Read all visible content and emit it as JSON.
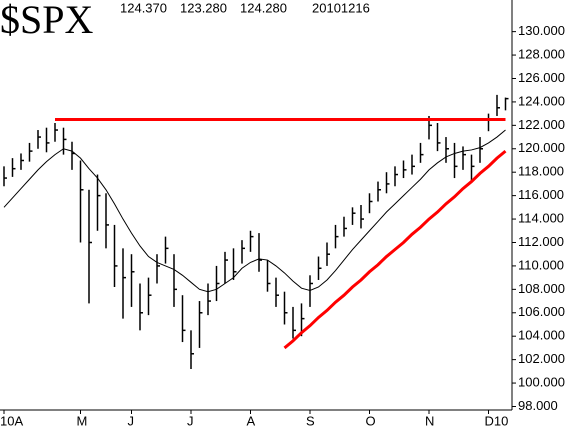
{
  "chart_data": {
    "type": "ohlc",
    "title": "$SPX",
    "info": [
      "124.370",
      "123.280",
      "124.280",
      "20101216"
    ],
    "categories": [
      "10A",
      null,
      null,
      null,
      null,
      null,
      null,
      null,
      null,
      "M",
      null,
      null,
      null,
      null,
      null,
      "J",
      null,
      null,
      null,
      null,
      null,
      null,
      "J",
      null,
      null,
      null,
      null,
      null,
      null,
      "A",
      null,
      null,
      null,
      null,
      null,
      null,
      "S",
      null,
      null,
      null,
      null,
      null,
      null,
      "O",
      null,
      null,
      null,
      null,
      null,
      null,
      "N",
      null,
      null,
      null,
      null,
      null,
      null,
      "D10",
      null,
      null
    ],
    "color": "#000000",
    "high": [
      118.5,
      119.2,
      119.6,
      120.5,
      121.6,
      121.8,
      122.2,
      121.8,
      120.6,
      119.0,
      116.5,
      117.8,
      116.2,
      113.5,
      111.5,
      111.0,
      108.5,
      109.0,
      111.0,
      112.5,
      111.0,
      107.5,
      104.5,
      107.0,
      108.5,
      110.0,
      111.2,
      111.5,
      112.2,
      113.0,
      112.8,
      110.5,
      109.0,
      107.8,
      106.5,
      106.8,
      109.2,
      110.8,
      112.0,
      113.5,
      114.2,
      115.0,
      115.2,
      116.2,
      117.2,
      118.0,
      118.5,
      119.0,
      119.5,
      120.5,
      122.8,
      122.2,
      121.0,
      120.5,
      120.2,
      119.5,
      121.0,
      123.0,
      124.6,
      124.37
    ],
    "low": [
      116.8,
      117.6,
      118.2,
      118.9,
      120.0,
      119.7,
      120.6,
      119.5,
      118.2,
      112.0,
      106.8,
      113.0,
      111.5,
      108.2,
      105.5,
      106.5,
      104.5,
      105.8,
      108.5,
      110.2,
      106.5,
      103.5,
      101.2,
      103.0,
      105.8,
      107.0,
      108.5,
      108.8,
      110.2,
      111.2,
      109.5,
      107.8,
      106.5,
      105.0,
      103.8,
      104.0,
      106.5,
      108.8,
      110.0,
      111.5,
      112.5,
      113.5,
      113.2,
      114.5,
      115.5,
      116.2,
      116.8,
      117.5,
      117.8,
      118.8,
      120.8,
      119.8,
      118.8,
      117.5,
      118.2,
      117.2,
      118.8,
      121.5,
      122.8,
      123.28
    ],
    "close": [
      117.5,
      118.3,
      119.0,
      119.8,
      121.0,
      120.5,
      121.6,
      120.8,
      119.6,
      116.5,
      112.0,
      116.0,
      113.5,
      110.0,
      109.0,
      109.5,
      106.0,
      107.5,
      110.0,
      111.5,
      108.0,
      104.5,
      102.5,
      106.0,
      107.0,
      108.5,
      110.5,
      109.5,
      111.5,
      112.5,
      110.5,
      108.5,
      107.5,
      106.0,
      104.5,
      105.5,
      108.5,
      109.8,
      111.0,
      112.5,
      113.2,
      114.5,
      114.0,
      115.5,
      116.5,
      117.0,
      117.8,
      118.2,
      118.5,
      119.5,
      122.0,
      120.5,
      120.0,
      118.5,
      119.5,
      118.5,
      120.0,
      122.5,
      123.5,
      124.28
    ],
    "lines": [
      {
        "color": "#000000",
        "values": [
          115.0,
          115.8,
          116.6,
          117.4,
          118.2,
          118.9,
          119.5,
          120.0,
          119.8,
          119.2,
          118.3,
          117.5,
          116.5,
          115.3,
          114.0,
          112.8,
          111.7,
          110.8,
          110.3,
          110.0,
          109.7,
          109.2,
          108.6,
          108.0,
          107.8,
          108.0,
          108.5,
          109.0,
          109.8,
          110.3,
          110.6,
          110.5,
          110.0,
          109.4,
          108.7,
          108.1,
          107.9,
          108.2,
          108.8,
          109.6,
          110.5,
          111.4,
          112.2,
          113.0,
          113.8,
          114.6,
          115.3,
          116.0,
          116.7,
          117.4,
          118.2,
          118.8,
          119.3,
          119.6,
          119.8,
          119.9,
          120.1,
          120.5,
          121.0,
          121.6
        ]
      },
      {
        "color": "#ff0000",
        "values": [
          null,
          null,
          null,
          null,
          null,
          null,
          122.5,
          122.5,
          122.5,
          122.5,
          122.5,
          122.5,
          122.5,
          122.5,
          122.5,
          122.5,
          122.5,
          122.5,
          122.5,
          122.5,
          122.5,
          122.5,
          122.5,
          122.5,
          122.5,
          122.5,
          122.5,
          122.5,
          122.5,
          122.5,
          122.5,
          122.5,
          122.5,
          122.5,
          122.5,
          122.5,
          122.5,
          122.5,
          122.5,
          122.5,
          122.5,
          122.5,
          122.5,
          122.5,
          122.5,
          122.5,
          122.5,
          122.5,
          122.5,
          122.5,
          122.5,
          122.5,
          122.5,
          122.5,
          122.5,
          122.5,
          122.5,
          122.5,
          122.5,
          122.5
        ]
      },
      {
        "color": "#ff0000",
        "values": [
          null,
          null,
          null,
          null,
          null,
          null,
          null,
          null,
          null,
          null,
          null,
          null,
          null,
          null,
          null,
          null,
          null,
          null,
          null,
          null,
          null,
          null,
          null,
          null,
          null,
          null,
          null,
          null,
          null,
          null,
          null,
          null,
          null,
          103.0,
          103.6,
          104.3,
          104.9,
          105.6,
          106.2,
          106.9,
          107.5,
          108.2,
          108.8,
          109.5,
          110.1,
          110.8,
          111.4,
          112.0,
          112.7,
          113.3,
          114.0,
          114.6,
          115.3,
          115.9,
          116.6,
          117.2,
          117.9,
          118.5,
          119.2,
          119.8
        ]
      }
    ],
    "ylim": [
      97.7,
      132.7
    ],
    "yticks": [
      {
        "value": 98,
        "label": "98.000"
      },
      {
        "value": 100,
        "label": "100.000"
      },
      {
        "value": 102,
        "label": "102.000"
      },
      {
        "value": 104,
        "label": "104.000"
      },
      {
        "value": 106,
        "label": "106.000"
      },
      {
        "value": 108,
        "label": "108.000"
      },
      {
        "value": 110,
        "label": "110.000"
      },
      {
        "value": 112,
        "label": "112.000"
      },
      {
        "value": 114,
        "label": "114.000"
      },
      {
        "value": 116,
        "label": "116.000"
      },
      {
        "value": 118,
        "label": "118.000"
      },
      {
        "value": 120,
        "label": "120.000"
      },
      {
        "value": 122,
        "label": "122.000"
      },
      {
        "value": 124,
        "label": "124.000"
      },
      {
        "value": 126,
        "label": "126.000"
      },
      {
        "value": 128,
        "label": "128.000"
      },
      {
        "value": 130,
        "label": "130.000"
      }
    ]
  }
}
